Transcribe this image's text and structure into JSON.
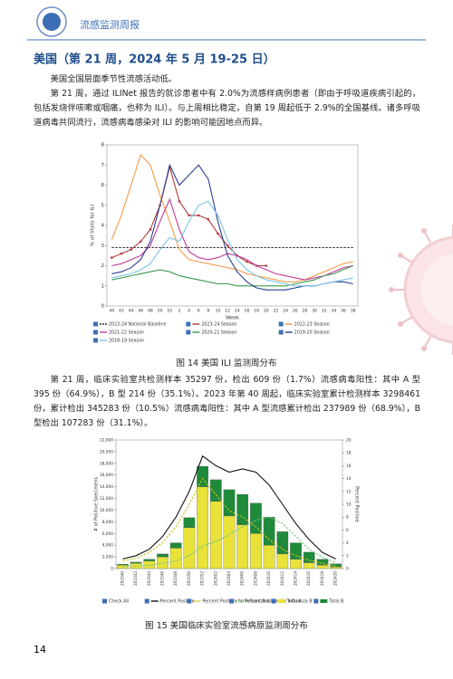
{
  "header": {
    "title": "流感监测周报"
  },
  "section": {
    "title": "美国（第 21 周，2024 年 5 月 19-25 日）",
    "paragraphs": [
      "美国全国层面季节性流感活动低。",
      "第 21 周，通过 ILINet 报告的就诊患者中有 2.0%为流感样病例患者（即由于呼吸道疾病引起的，包括发烧伴咳嗽或咽痛，也称为 ILI）。与上周相比稳定，自第 19 周起低于 2.9%的全国基线。诸多呼吸道病毒共同流行，流感病毒感染对 ILI 的影响可能因地点而异。",
      "第 21 周，临床实验室共检测样本 35297 份，检出 609 份（1.7%）流感病毒阳性：其中 A 型 395 份（64.9%），B 型 214 份（35.1%）。2023 年第 40 周起，临床实验室累计检测样本 3298461 份，累计检出 345283 份（10.5%）流感病毒阳性：其中 A 型流感累计检出 237989 份（68.9%），B 型检出 107283 份（31.1%）。"
    ],
    "captions": [
      "图 14   美国 ILI 监测周分布",
      "图 15   美国临床实验室流感病原监测周分布"
    ]
  },
  "page_number": "14",
  "chart_data": [
    {
      "type": "line",
      "ylabel": "% of Visits for ILI",
      "xlabel": "Week",
      "categories": [
        "40",
        "42",
        "44",
        "46",
        "48",
        "50",
        "52",
        "2",
        "4",
        "6",
        "8",
        "10",
        "12",
        "14",
        "16",
        "18",
        "20",
        "22",
        "24",
        "26",
        "28",
        "30",
        "32",
        "34",
        "36",
        "38"
      ],
      "ylim": [
        0,
        8
      ],
      "yticks": [
        0,
        1,
        2,
        3,
        4,
        5,
        6,
        7,
        8
      ],
      "series": [
        {
          "name": "2023-24 National Baseline",
          "color": "#333333",
          "dashed": true,
          "values": [
            2.9,
            2.9,
            2.9,
            2.9,
            2.9,
            2.9,
            2.9,
            2.9,
            2.9,
            2.9,
            2.9,
            2.9,
            2.9,
            2.9,
            2.9,
            2.9,
            2.9,
            2.9,
            2.9,
            2.9,
            2.9,
            2.9,
            2.9,
            2.9,
            2.9,
            2.9
          ]
        },
        {
          "name": "2023-24 Season",
          "color": "#b03a3a",
          "markers": true,
          "values": [
            2.4,
            2.6,
            2.8,
            3.2,
            3.8,
            5.0,
            6.9,
            5.2,
            4.5,
            4.5,
            4.3,
            3.6,
            3.0,
            2.5,
            2.2,
            2.0,
            2.0,
            null,
            null,
            null,
            null,
            null,
            null,
            null,
            null,
            null
          ]
        },
        {
          "name": "2022-23 Season",
          "color": "#f39a4a",
          "values": [
            3.3,
            4.5,
            6.0,
            7.5,
            7.0,
            5.5,
            4.2,
            2.8,
            2.3,
            2.2,
            2.1,
            2.0,
            1.9,
            1.8,
            1.6,
            1.5,
            1.4,
            1.3,
            1.2,
            1.2,
            1.3,
            1.5,
            1.7,
            1.9,
            2.1,
            2.2
          ]
        },
        {
          "name": "2021-22 Season",
          "color": "#c23a9a",
          "values": [
            2.0,
            2.1,
            2.3,
            2.5,
            3.0,
            4.2,
            5.3,
            3.8,
            2.7,
            2.4,
            2.3,
            2.4,
            2.6,
            2.5,
            2.3,
            2.0,
            1.8,
            1.6,
            1.5,
            1.4,
            1.3,
            1.4,
            1.5,
            1.7,
            1.9,
            2.0
          ]
        },
        {
          "name": "2020-21 Season",
          "color": "#3a9a4a",
          "values": [
            1.3,
            1.4,
            1.5,
            1.6,
            1.7,
            1.8,
            1.7,
            1.5,
            1.4,
            1.3,
            1.2,
            1.1,
            1.1,
            1.0,
            1.0,
            1.0,
            1.0,
            1.0,
            1.0,
            1.1,
            1.2,
            1.3,
            1.5,
            1.6,
            1.8,
            2.0
          ]
        },
        {
          "name": "2019-20 Season",
          "color": "#2a3f8f",
          "values": [
            1.6,
            1.7,
            1.9,
            2.3,
            3.2,
            5.0,
            7.0,
            6.0,
            6.5,
            7.0,
            6.3,
            4.2,
            2.5,
            1.7,
            1.2,
            0.9,
            0.8,
            0.8,
            0.8,
            0.9,
            1.0,
            1.0,
            1.1,
            1.2,
            1.2,
            1.1
          ]
        },
        {
          "name": "2018-19 Season",
          "color": "#7cc6ea",
          "values": [
            1.4,
            1.5,
            1.6,
            1.8,
            2.1,
            2.8,
            3.4,
            3.2,
            4.2,
            5.0,
            5.2,
            4.5,
            3.3,
            2.3,
            1.8,
            1.5,
            1.3,
            1.2,
            1.1,
            1.0,
            1.0,
            1.0,
            1.1,
            1.2,
            1.3,
            1.4
          ]
        }
      ]
    },
    {
      "type": "bar",
      "stacked": true,
      "ylabel": "# of Positive Specimens",
      "y2label": "Percent Positive",
      "legend_all": "Check All",
      "categories": [
        "202340",
        "202342",
        "202344",
        "202346",
        "202348",
        "202350",
        "202352",
        "202402",
        "202404",
        "202406",
        "202408",
        "202410",
        "202412",
        "202414",
        "202416",
        "202418",
        "202420"
      ],
      "ylim": [
        0,
        22000
      ],
      "yticks": [
        0,
        {
          "value": 2000,
          "label": "2,000"
        },
        {
          "value": 4000,
          "label": "4,000"
        },
        {
          "value": 6000,
          "label": "6,000"
        },
        {
          "value": 8000,
          "label": "8,000"
        },
        {
          "value": 10000,
          "label": "10,000"
        },
        {
          "value": 12000,
          "label": "12,000"
        },
        {
          "value": 14000,
          "label": "14,000"
        },
        {
          "value": 16000,
          "label": "16,000"
        },
        {
          "value": 18000,
          "label": "18,000"
        },
        {
          "value": 20000,
          "label": "20,000"
        },
        {
          "value": 22000,
          "label": "22,000"
        }
      ],
      "y2lim": [
        0,
        20
      ],
      "y2ticks": [
        0,
        2,
        4,
        6,
        8,
        10,
        12,
        14,
        16,
        18,
        20
      ],
      "series": [
        {
          "name": "Total A",
          "color": "#e8e23a",
          "values": [
            600,
            900,
            1300,
            2000,
            3500,
            7000,
            14000,
            11500,
            9000,
            7500,
            6000,
            4000,
            2500,
            1600,
            1000,
            600,
            300
          ]
        },
        {
          "name": "Total B",
          "color": "#1e8a3a",
          "values": [
            150,
            200,
            300,
            500,
            900,
            1700,
            3500,
            3700,
            4500,
            5200,
            5200,
            4800,
            3800,
            2800,
            1800,
            1000,
            500
          ]
        },
        {
          "name": "Percent Positive",
          "color": "#111111",
          "axis": "y2",
          "values": [
            1.5,
            2,
            3,
            5,
            8,
            12,
            17.5,
            16,
            15,
            15.5,
            15,
            13,
            10,
            7,
            4.5,
            2.5,
            1.5
          ]
        },
        {
          "name": "Percent Positive for Influenza A",
          "color": "#c9c21a",
          "axis": "y2",
          "dashed": true,
          "values": [
            1.2,
            1.6,
            2.5,
            4,
            6.5,
            10,
            14,
            11.5,
            9,
            8,
            6.5,
            4.5,
            3,
            2,
            1.3,
            0.8,
            0.4
          ]
        },
        {
          "name": "Percent Positive for Influenza B",
          "color": "#7bc47f",
          "axis": "y2",
          "dashed": true,
          "values": [
            0.3,
            0.4,
            0.5,
            0.8,
            1.2,
            2,
            3.5,
            4.2,
            5.3,
            6.5,
            7.5,
            8,
            7,
            5,
            3,
            1.8,
            0.9
          ]
        }
      ]
    }
  ]
}
